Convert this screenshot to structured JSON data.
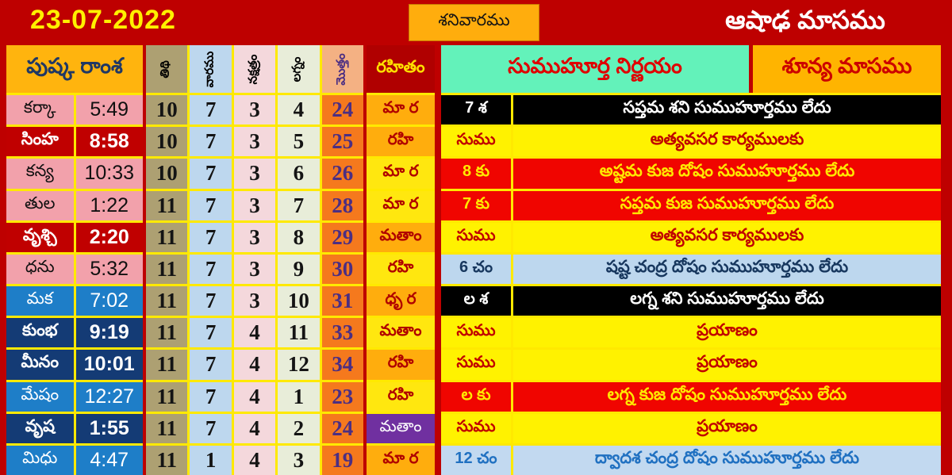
{
  "header": {
    "date": "23-07-2022",
    "weekday": "శనివారము",
    "month": "ఆషాఢ మాసము"
  },
  "left_table": {
    "title": "పుష్క రాంశ",
    "column_headers": [
      "తిథి",
      "వారము",
      "నక్షత్రం",
      "లగ్నం",
      "మొత్తం"
    ],
    "rahitam_header": "రహితం",
    "rows": [
      {
        "sign": "కర్కా",
        "time": "5:49",
        "row_style": "day",
        "tithi": 10,
        "vara": 7,
        "nakshatra": 3,
        "lagna": 4,
        "total": 24,
        "rahitam": "మా ర",
        "rahitam_style": "orange"
      },
      {
        "sign": "సింహ",
        "time": "8:58",
        "row_style": "day-strong",
        "tithi": 10,
        "vara": 7,
        "nakshatra": 3,
        "lagna": 5,
        "total": 25,
        "rahitam": "రహి",
        "rahitam_style": "orange"
      },
      {
        "sign": "కన్య",
        "time": "10:33",
        "row_style": "day",
        "tithi": 10,
        "vara": 7,
        "nakshatra": 3,
        "lagna": 6,
        "total": 26,
        "rahitam": "మా ర",
        "rahitam_style": "yellow"
      },
      {
        "sign": "తుల",
        "time": "1:22",
        "row_style": "day",
        "tithi": 11,
        "vara": 7,
        "nakshatra": 3,
        "lagna": 7,
        "total": 28,
        "rahitam": "మా ర",
        "rahitam_style": "yellow"
      },
      {
        "sign": "వృశ్చి",
        "time": "2:20",
        "row_style": "day-strong",
        "tithi": 11,
        "vara": 7,
        "nakshatra": 3,
        "lagna": 8,
        "total": 29,
        "rahitam": "మతాం",
        "rahitam_style": "orange"
      },
      {
        "sign": "ధను",
        "time": "5:32",
        "row_style": "day",
        "tithi": 11,
        "vara": 7,
        "nakshatra": 3,
        "lagna": 9,
        "total": 30,
        "rahitam": "రహి",
        "rahitam_style": "yellow"
      },
      {
        "sign": "మక",
        "time": "7:02",
        "row_style": "night",
        "tithi": 11,
        "vara": 7,
        "nakshatra": 3,
        "lagna": 10,
        "total": 31,
        "rahitam": "ధృ ర",
        "rahitam_style": "orange"
      },
      {
        "sign": "కుంభ",
        "time": "9:19",
        "row_style": "night-strong",
        "tithi": 11,
        "vara": 7,
        "nakshatra": 4,
        "lagna": 11,
        "total": 33,
        "rahitam": "మతాం",
        "rahitam_style": "yellow"
      },
      {
        "sign": "మీనం",
        "time": "10:01",
        "row_style": "night-strong",
        "tithi": 11,
        "vara": 7,
        "nakshatra": 4,
        "lagna": 12,
        "total": 34,
        "rahitam": "రహి",
        "rahitam_style": "orange"
      },
      {
        "sign": "మేషం",
        "time": "12:27",
        "row_style": "night",
        "tithi": 11,
        "vara": 7,
        "nakshatra": 4,
        "lagna": 1,
        "total": 23,
        "rahitam": "రహి",
        "rahitam_style": "yellow"
      },
      {
        "sign": "వృష",
        "time": "1:55",
        "row_style": "night-strong",
        "tithi": 11,
        "vara": 7,
        "nakshatra": 4,
        "lagna": 2,
        "total": 24,
        "rahitam": "మతాం",
        "rahitam_style": "purple"
      },
      {
        "sign": "మిధు",
        "time": "4:47",
        "row_style": "night",
        "tithi": 11,
        "vara": 1,
        "nakshatra": 4,
        "lagna": 3,
        "total": 19,
        "rahitam": "మా ర",
        "rahitam_style": "orange"
      }
    ]
  },
  "right_table": {
    "header_left": "సుముహూర్త నిర్ణయం",
    "header_right": "శూన్య మాసము",
    "rows": [
      {
        "label": "7 శ",
        "text": "సప్తమ శని సుముహూర్తము లేదు",
        "style": "black"
      },
      {
        "label": "సుము",
        "text": "అత్యవసర కార్యములకు",
        "style": "yellow"
      },
      {
        "label": "8 కు",
        "text": "అష్టమ కుజ దోషం సుముహూర్తము లేదు",
        "style": "red"
      },
      {
        "label": "7 కు",
        "text": "సప్తమ కుజ సుముహూర్తము లేదు",
        "style": "red"
      },
      {
        "label": "సుము",
        "text": "అత్యవసర కార్యములకు",
        "style": "yellow"
      },
      {
        "label": "6 చం",
        "text": "షష్ట చంద్ర దోషం సుముహూర్తము లేదు",
        "style": "blue-navy"
      },
      {
        "label": "ల శ",
        "text": "లగ్న శని  సుముహూర్తము లేదు",
        "style": "black"
      },
      {
        "label": "సుము",
        "text": "ప్రయాణం",
        "style": "yellow"
      },
      {
        "label": "సుము",
        "text": "ప్రయాణం",
        "style": "yellow"
      },
      {
        "label": "ల కు",
        "text": "లగ్న  కుజ దోషం సుముహూర్తము లేదు",
        "style": "red"
      },
      {
        "label": "సుము",
        "text": "ప్రయాణం",
        "style": "yellow"
      },
      {
        "label": "12 చం",
        "text": "ద్వాదశ  చంద్ర దోషం సుముహూర్తము లేదు",
        "style": "blue-bright"
      }
    ]
  },
  "colors": {
    "page_red": "#BE0000",
    "bright_red": "#F00500",
    "row_yellow": "#FFF200",
    "grid_yellow": "#FFE900",
    "rahitam_orange": "#FFAD0D",
    "header_gold": "#FFB40E",
    "purple": "#7030A0",
    "aqua_green": "#63F2BA",
    "light_blue": "#BDD7EE",
    "pink_row": "#F2A1AB",
    "blue_row": "#1E7EC8",
    "navy_row": "#143B75",
    "tan_col": "#ADA072",
    "nakshatra_col": "#F4D8DC",
    "lagna_col": "#E8EDD9",
    "sum_col": "#F5791D",
    "sum_header_peach": "#F4B183",
    "sum_number_purple": "#4B2E83",
    "title_navy": "#203864"
  }
}
